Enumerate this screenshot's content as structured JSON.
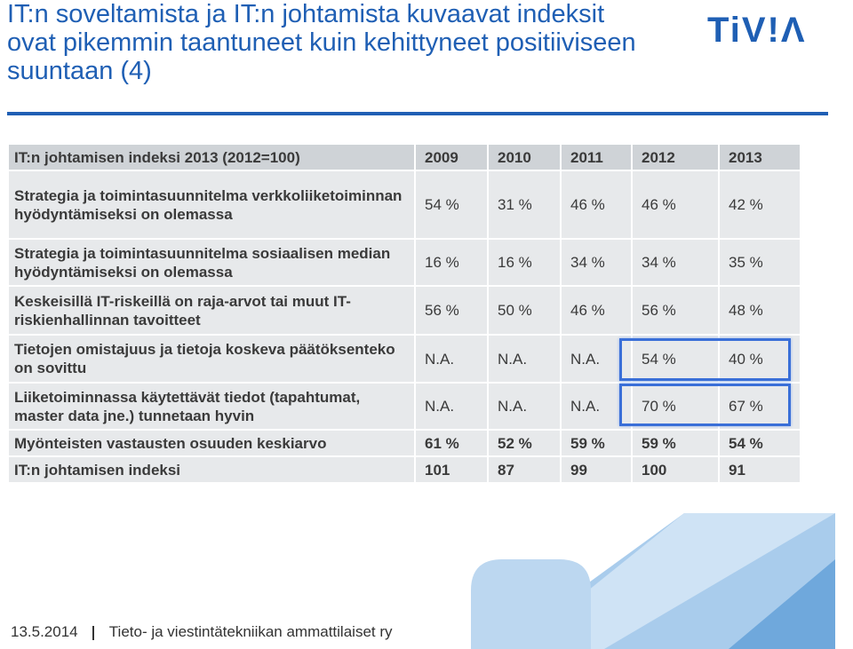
{
  "header": {
    "title": "IT:n soveltamista ja IT:n johtamista kuvaavat indeksit ovat pikemmin taantuneet kuin kehittyneet positiiviseen suuntaan (4)",
    "logo": "TiV!Λ"
  },
  "table": {
    "header": [
      "IT:n johtamisen indeksi 2013 (2012=100)",
      "2009",
      "2010",
      "2011",
      "2012",
      "2013"
    ],
    "rows": [
      [
        "Strategia ja toimintasuunnitelma verkkoliiketoiminnan hyödyntämiseksi on olemassa",
        "54 %",
        "31 %",
        "46 %",
        "46 %",
        "42 %"
      ],
      [
        "Strategia ja toimintasuunnitelma sosiaalisen median hyödyntämiseksi on olemassa",
        "16 %",
        "16 %",
        "34 %",
        "34 %",
        "35 %"
      ],
      [
        "Keskeisillä IT-riskeillä on raja-arvot tai muut IT-riskienhallinnan tavoitteet",
        "56 %",
        "50 %",
        "46 %",
        "56 %",
        "48 %"
      ],
      [
        "Tietojen omistajuus ja tietoja koskeva päätöksenteko on sovittu",
        "N.A.",
        "N.A.",
        "N.A.",
        "54 %",
        "40 %"
      ],
      [
        "Liiketoiminnassa käytettävät tiedot (tapahtumat, master data jne.) tunnetaan hyvin",
        "N.A.",
        "N.A.",
        "N.A.",
        "70 %",
        "67 %"
      ],
      [
        "Myönteisten vastausten osuuden keskiarvo",
        "61 %",
        "52 %",
        "59 %",
        "59 %",
        "54 %"
      ],
      [
        "IT:n johtamisen indeksi",
        "101",
        "87",
        "99",
        "100",
        "91"
      ]
    ]
  },
  "footer": {
    "date": "13.5.2014",
    "organization": "Tieto- ja viestintätekniikan ammattilaiset ry"
  }
}
